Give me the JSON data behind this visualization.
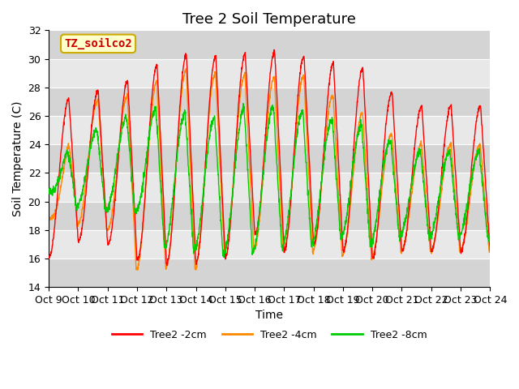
{
  "title": "Tree 2 Soil Temperature",
  "xlabel": "Time",
  "ylabel": "Soil Temperature (C)",
  "ylim": [
    14,
    32
  ],
  "xlim": [
    0,
    15
  ],
  "xtick_labels": [
    "Oct 9",
    "Oct 10",
    "Oct 11",
    "Oct 12",
    "Oct 13",
    "Oct 14",
    "Oct 15",
    "Oct 16",
    "Oct 17",
    "Oct 18",
    "Oct 19",
    "Oct 20",
    "Oct 21",
    "Oct 22",
    "Oct 23",
    "Oct 24"
  ],
  "annotation_text": "TZ_soilco2",
  "annotation_box_facecolor": "#FFFFCC",
  "annotation_box_edgecolor": "#CCAA00",
  "annotation_text_color": "#CC0000",
  "color_2cm": "#FF0000",
  "color_4cm": "#FF8800",
  "color_8cm": "#00CC00",
  "label_2cm": "Tree2 -2cm",
  "label_4cm": "Tree2 -4cm",
  "label_8cm": "Tree2 -8cm",
  "background_color": "#E8E8E8",
  "title_fontsize": 13,
  "axis_label_fontsize": 10,
  "tick_fontsize": 9,
  "legend_fontsize": 9,
  "annotation_fontsize": 10,
  "peaks_2cm": [
    26.3,
    27.7,
    27.8,
    28.8,
    30.0,
    30.5,
    30.0,
    30.5,
    30.5,
    30.0,
    29.5,
    29.3,
    26.7
  ],
  "troughs_2cm": [
    16.0,
    17.2,
    17.0,
    15.9,
    15.6,
    15.7,
    16.0,
    17.7,
    16.5,
    17.0,
    16.5,
    16.0,
    16.5
  ],
  "peaks_4cm": [
    19.0,
    26.5,
    27.5,
    27.3,
    29.0,
    29.3,
    28.8,
    29.0,
    28.5,
    29.0,
    26.5,
    26.0,
    24.0
  ],
  "troughs_4cm": [
    18.8,
    18.3,
    18.0,
    15.2,
    15.3,
    15.3,
    16.6,
    16.6,
    16.5,
    16.5,
    16.2,
    16.0,
    16.5
  ],
  "peaks_8cm": [
    21.0,
    25.0,
    25.0,
    26.5,
    26.5,
    26.0,
    25.8,
    27.0,
    26.5,
    26.2,
    25.5,
    25.3,
    23.5
  ],
  "troughs_8cm": [
    20.7,
    19.5,
    19.3,
    19.2,
    16.7,
    16.5,
    16.3,
    16.5,
    16.8,
    17.0,
    17.5,
    17.0,
    17.5
  ]
}
